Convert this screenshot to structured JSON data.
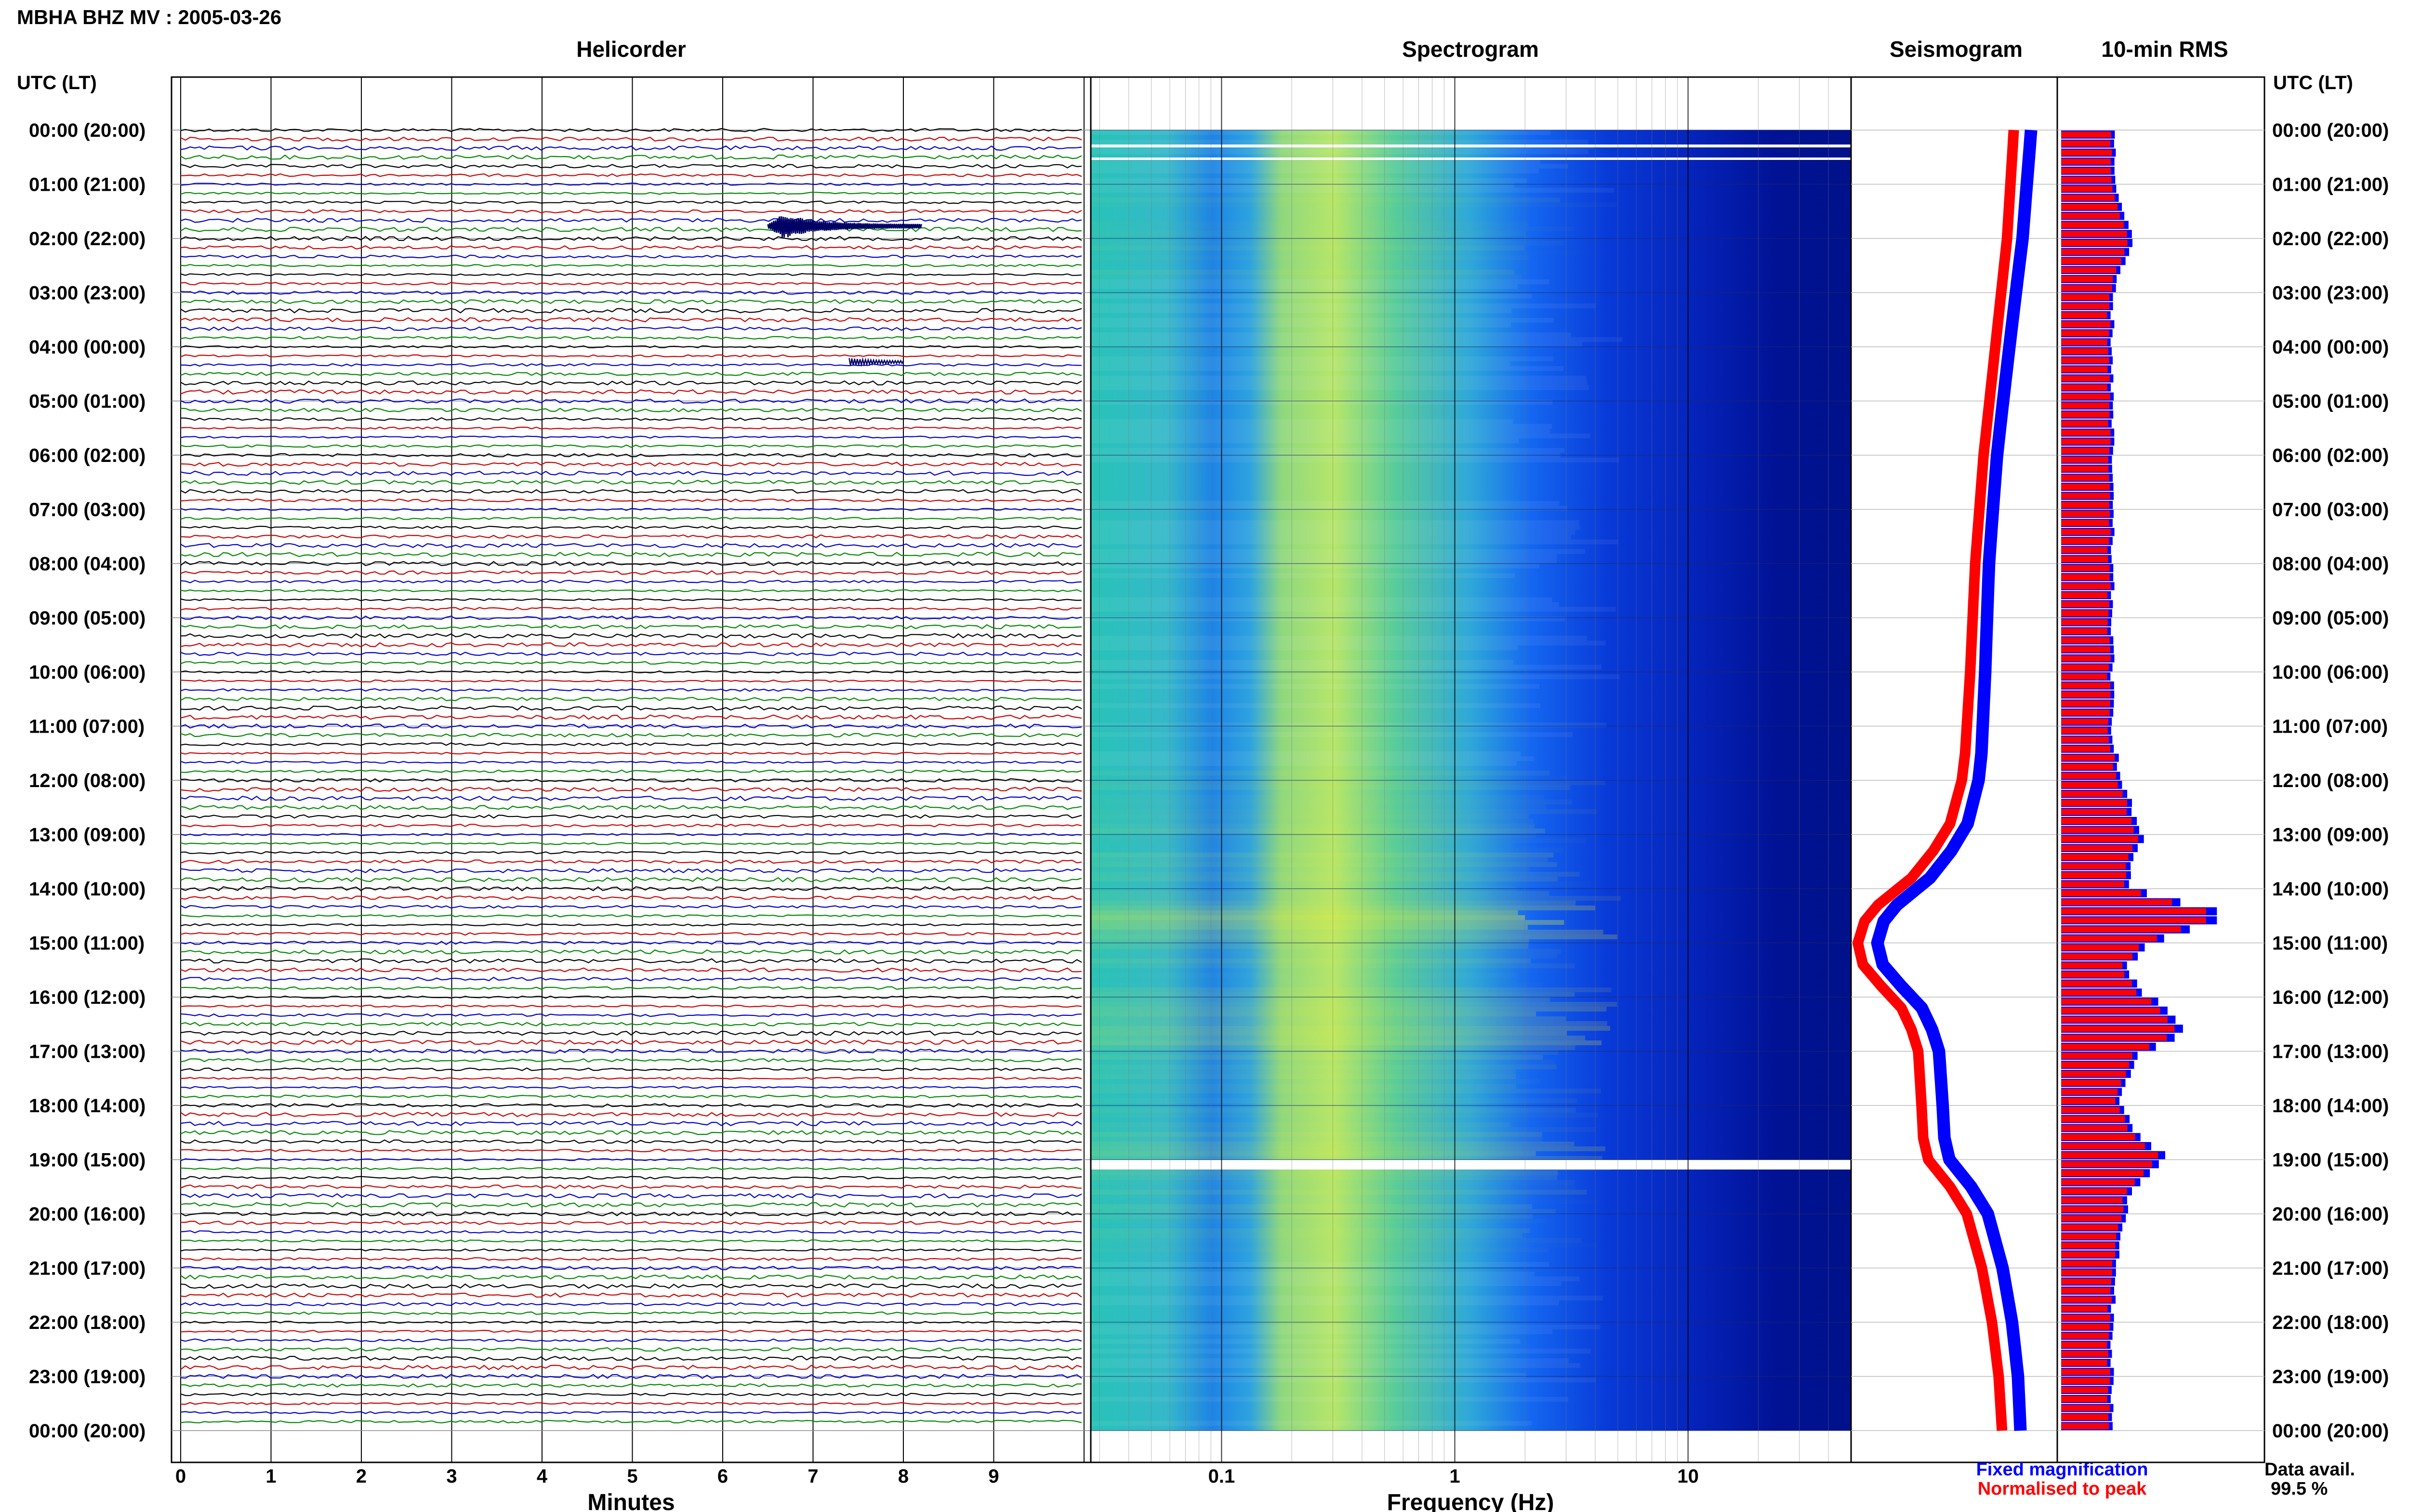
{
  "title": "MBHA BHZ MV : 2005-03-26",
  "time_header": "UTC (LT)",
  "time_labels": [
    "00:00 (20:00)",
    "01:00 (21:00)",
    "02:00 (22:00)",
    "03:00 (23:00)",
    "04:00 (00:00)",
    "05:00 (01:00)",
    "06:00 (02:00)",
    "07:00 (03:00)",
    "08:00 (04:00)",
    "09:00 (05:00)",
    "10:00 (06:00)",
    "11:00 (07:00)",
    "12:00 (08:00)",
    "13:00 (09:00)",
    "14:00 (10:00)",
    "15:00 (11:00)",
    "16:00 (12:00)",
    "17:00 (13:00)",
    "18:00 (14:00)",
    "19:00 (15:00)",
    "20:00 (16:00)",
    "21:00 (17:00)",
    "22:00 (18:00)",
    "23:00 (19:00)",
    "00:00 (20:00)"
  ],
  "panels": {
    "helicorder": {
      "title": "Helicorder",
      "xlabel": "Minutes",
      "ticks": [
        "0",
        "1",
        "2",
        "3",
        "4",
        "5",
        "6",
        "7",
        "8",
        "9"
      ],
      "trace_colors": [
        "#000000",
        "#cc0000",
        "#0000cc",
        "#008800"
      ]
    },
    "spectrogram": {
      "title": "Spectrogram",
      "xlabel": "Frequency (Hz)",
      "ticks": [
        "0.1",
        "1",
        "10"
      ]
    },
    "seismogram": {
      "title": "Seismogram",
      "legend": [
        {
          "label": "Fixed magnification",
          "color": "#0000ff"
        },
        {
          "label": "Normalised to peak",
          "color": "#ff0000"
        }
      ]
    },
    "rms": {
      "title": "10-min RMS",
      "data_avail_label": "Data avail.",
      "data_avail_value": "99.5 %",
      "colors": {
        "fixed": "#0000ff",
        "normalised": "#ff0000"
      }
    }
  },
  "chart_data": {
    "type": "bar",
    "title": "10-min RMS",
    "x_unit": "hours UTC",
    "xlim": [
      0,
      24
    ],
    "rms_hourly_keypoints": {
      "hours": [
        0,
        1,
        2,
        3,
        4,
        5,
        6,
        7,
        8,
        9,
        10,
        11,
        12,
        13,
        14,
        14.3,
        14.5,
        15,
        15.5,
        16,
        16.3,
        16.7,
        17,
        17.5,
        18,
        18.5,
        19,
        19.5,
        20,
        21,
        22,
        23,
        24
      ],
      "values": [
        1.0,
        1.0,
        1.3,
        0.95,
        0.95,
        0.95,
        0.95,
        0.95,
        0.95,
        0.95,
        0.95,
        0.95,
        1.1,
        1.5,
        1.2,
        2.4,
        3.2,
        1.6,
        1.2,
        1.6,
        2.1,
        2.3,
        1.5,
        1.2,
        1.1,
        1.4,
        2.0,
        1.3,
        1.2,
        1.0,
        0.95,
        0.95,
        0.95
      ]
    },
    "seismogram_shape": {
      "hours": [
        0,
        2,
        4,
        6,
        8,
        10,
        11.5,
        12,
        12.8,
        13.3,
        13.8,
        14.3,
        14.6,
        15.0,
        15.4,
        15.8,
        16.2,
        16.6,
        17.0,
        17.5,
        18.0,
        18.6,
        19.0,
        19.5,
        20.0,
        21.0,
        22.0,
        23.0,
        24.0
      ],
      "offset": [
        0.93,
        0.89,
        0.82,
        0.75,
        0.7,
        0.67,
        0.64,
        0.62,
        0.55,
        0.45,
        0.32,
        0.12,
        0.04,
        0.0,
        0.03,
        0.14,
        0.26,
        0.32,
        0.36,
        0.37,
        0.38,
        0.39,
        0.42,
        0.55,
        0.65,
        0.74,
        0.8,
        0.84,
        0.86
      ]
    }
  }
}
